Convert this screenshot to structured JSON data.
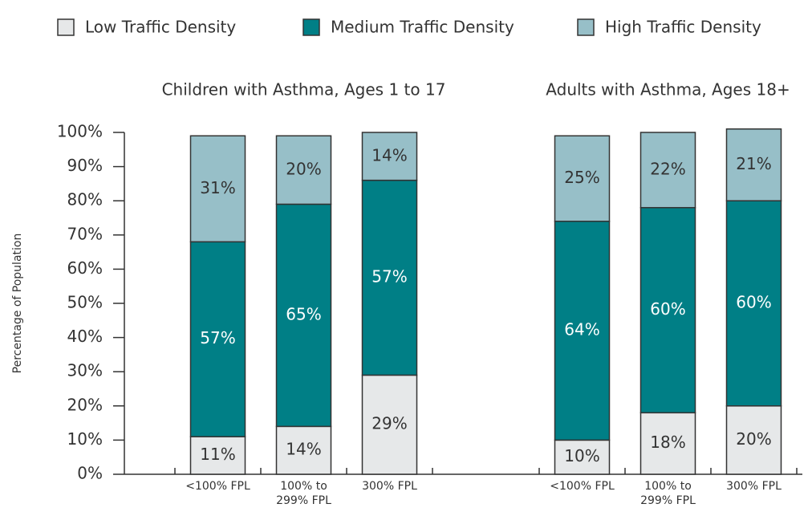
{
  "chart_data": {
    "type": "bar",
    "stacked": true,
    "y_label": "Percentage of Population",
    "group_titles": [
      "Children with Asthma, Ages 1 to 17",
      "Adults with Asthma, Ages 18+"
    ],
    "categories": [
      "<100% FPL",
      "100% to 299% FPL",
      "300% FPL",
      "<100% FPL",
      "100% to 299% FPL",
      "300% FPL"
    ],
    "series": [
      {
        "name": "Low Traffic Density",
        "color": "#e6e8e9",
        "label_color": "#333333",
        "values": [
          11,
          14,
          29,
          10,
          18,
          20
        ],
        "value_labels": [
          "11%",
          "14%",
          "29%",
          "10%",
          "18%",
          "20%"
        ]
      },
      {
        "name": "Medium Traffic Density",
        "color": "#007f86",
        "label_color": "#ffffff",
        "values": [
          57,
          65,
          57,
          64,
          60,
          60
        ],
        "value_labels": [
          "57%",
          "65%",
          "57%",
          "64%",
          "60%",
          "60%"
        ]
      },
      {
        "name": "High Traffic Density",
        "color": "#97bfc8",
        "label_color": "#333333",
        "values": [
          31,
          20,
          14,
          25,
          22,
          21
        ],
        "value_labels": [
          "31%",
          "20%",
          "14%",
          "25%",
          "22%",
          "21%"
        ]
      }
    ],
    "ylim": [
      0,
      100
    ],
    "yticks": [
      {
        "value": 0,
        "label": "0%"
      },
      {
        "value": 10,
        "label": "10%"
      },
      {
        "value": 20,
        "label": "20%"
      },
      {
        "value": 30,
        "label": "30%"
      },
      {
        "value": 40,
        "label": "40%"
      },
      {
        "value": 50,
        "label": "50%"
      },
      {
        "value": 60,
        "label": "60%"
      },
      {
        "value": 70,
        "label": "70%"
      },
      {
        "value": 80,
        "label": "80%"
      },
      {
        "value": 90,
        "label": "90%"
      },
      {
        "value": 100,
        "label": "100%"
      }
    ],
    "legend": "top"
  }
}
